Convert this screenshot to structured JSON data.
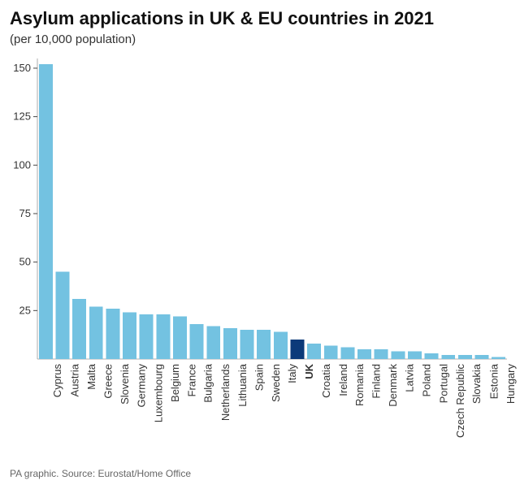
{
  "title": "Asylum applications in UK & EU countries in 2021",
  "subtitle": "(per 10,000 population)",
  "footer": "PA graphic. Source: Eurostat/Home Office",
  "chart": {
    "type": "bar",
    "ylim": [
      0,
      155
    ],
    "yticks": [
      25,
      50,
      75,
      100,
      125,
      150
    ],
    "ytick_step": 25,
    "background_color": "#ffffff",
    "grid_color": "#cccccc",
    "axis_color": "#999999",
    "bar_color": "#73c2e1",
    "highlight_color": "#0c3a7a",
    "tick_label_color": "#333333",
    "title_color": "#111111",
    "subtitle_color": "#333333",
    "footer_color": "#666666",
    "title_fontsize": 22,
    "subtitle_fontsize": 15,
    "axis_fontsize": 13,
    "footer_fontsize": 12,
    "bar_gap_ratio": 0.18,
    "categories": [
      "Cyprus",
      "Austria",
      "Malta",
      "Greece",
      "Slovenia",
      "Germany",
      "Luxembourg",
      "Belgium",
      "France",
      "Bulgaria",
      "Netherlands",
      "Lithuania",
      "Spain",
      "Sweden",
      "Italy",
      "UK",
      "Croatia",
      "Ireland",
      "Romania",
      "Finland",
      "Denmark",
      "Latvia",
      "Poland",
      "Portugal",
      "Czech Republic",
      "Slovakia",
      "Estonia",
      "Hungary"
    ],
    "values": [
      152,
      45,
      31,
      27,
      26,
      24,
      23,
      23,
      22,
      18,
      17,
      16,
      15,
      15,
      14,
      10,
      8,
      7,
      6,
      5,
      5,
      4,
      4,
      3,
      2,
      2,
      2,
      1
    ],
    "highlight": [
      false,
      false,
      false,
      false,
      false,
      false,
      false,
      false,
      false,
      false,
      false,
      false,
      false,
      false,
      false,
      true,
      false,
      false,
      false,
      false,
      false,
      false,
      false,
      false,
      false,
      false,
      false,
      false
    ]
  }
}
